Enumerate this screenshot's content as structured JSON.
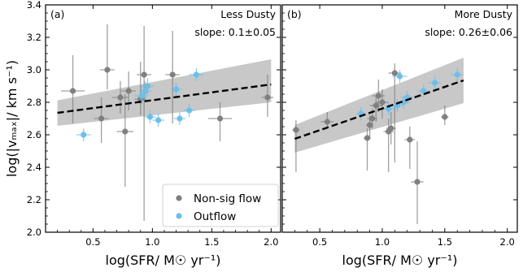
{
  "chart_data": [
    {
      "type": "scatter",
      "panel_label": "(a)",
      "annotation": "Less Dusty",
      "slope_text": "slope: 0.1±0.05",
      "xlabel": "log(SFR/ M☉ yr⁻¹)",
      "ylabel": "log(|vₘₐₓ|/ km s⁻¹)",
      "xlim": [
        0.1,
        2.08
      ],
      "ylim": [
        2.0,
        3.4
      ],
      "xticks": [
        "0.5",
        "1.0",
        "1.5",
        "2.0"
      ],
      "yticks": [
        "2.0",
        "2.2",
        "2.4",
        "2.6",
        "2.8",
        "3.0",
        "3.2",
        "3.4"
      ],
      "fit": {
        "x": [
          0.2,
          2.0
        ],
        "y": [
          2.735,
          2.91
        ],
        "band_lower": [
          2.655,
          2.8
        ],
        "band_upper": [
          2.812,
          3.065
        ]
      },
      "series": [
        {
          "name": "Non-sig flow",
          "color": "#808080",
          "points": [
            {
              "x": 0.33,
              "y": 2.87,
              "xerr": 0.1,
              "yerr_lo": 0.2,
              "yerr_hi": 0.22
            },
            {
              "x": 0.57,
              "y": 2.7,
              "xerr": 0.06,
              "yerr_lo": 0.15,
              "yerr_hi": 0.13
            },
            {
              "x": 0.62,
              "y": 3.0,
              "xerr": 0.06,
              "yerr_lo": 0.12,
              "yerr_hi": 0.28
            },
            {
              "x": 0.73,
              "y": 2.83,
              "xerr": 0.07,
              "yerr_lo": 0.1,
              "yerr_hi": 0.1
            },
            {
              "x": 0.77,
              "y": 2.62,
              "xerr": 0.07,
              "yerr_lo": 0.34,
              "yerr_hi": 0.23
            },
            {
              "x": 0.8,
              "y": 2.87,
              "xerr": 0.06,
              "yerr_lo": 0.12,
              "yerr_hi": 0.12
            },
            {
              "x": 0.9,
              "y": 2.82,
              "xerr": 0.05,
              "yerr_lo": 0.1,
              "yerr_hi": 0.23
            },
            {
              "x": 0.93,
              "y": 2.97,
              "xerr": 0.06,
              "yerr_lo": 0.9,
              "yerr_hi": 0.3
            },
            {
              "x": 1.17,
              "y": 2.97,
              "xerr": 0.06,
              "yerr_lo": 0.3,
              "yerr_hi": 0.27
            },
            {
              "x": 1.57,
              "y": 2.7,
              "xerr": 0.1,
              "yerr_lo": 0.14,
              "yerr_hi": 0.1
            },
            {
              "x": 1.97,
              "y": 2.83,
              "xerr": 0.05,
              "yerr_lo": 0.12,
              "yerr_hi": 0.14
            }
          ]
        },
        {
          "name": "Outflow",
          "color": "#6cbfea",
          "points": [
            {
              "x": 0.42,
              "y": 2.6,
              "xerr": 0.06,
              "yerr_lo": 0.04,
              "yerr_hi": 0.04
            },
            {
              "x": 0.91,
              "y": 2.84,
              "xerr": 0.06,
              "yerr_lo": 0.05,
              "yerr_hi": 0.06
            },
            {
              "x": 0.94,
              "y": 2.87,
              "xerr": 0.05,
              "yerr_lo": 0.05,
              "yerr_hi": 0.06
            },
            {
              "x": 0.96,
              "y": 2.9,
              "xerr": 0.05,
              "yerr_lo": 0.05,
              "yerr_hi": 0.05
            },
            {
              "x": 0.98,
              "y": 2.71,
              "xerr": 0.05,
              "yerr_lo": 0.04,
              "yerr_hi": 0.04
            },
            {
              "x": 1.05,
              "y": 2.69,
              "xerr": 0.05,
              "yerr_lo": 0.04,
              "yerr_hi": 0.04
            },
            {
              "x": 1.2,
              "y": 2.88,
              "xerr": 0.05,
              "yerr_lo": 0.04,
              "yerr_hi": 0.04
            },
            {
              "x": 1.23,
              "y": 2.7,
              "xerr": 0.05,
              "yerr_lo": 0.04,
              "yerr_hi": 0.04
            },
            {
              "x": 1.31,
              "y": 2.75,
              "xerr": 0.05,
              "yerr_lo": 0.04,
              "yerr_hi": 0.04
            },
            {
              "x": 1.37,
              "y": 2.97,
              "xerr": 0.06,
              "yerr_lo": 0.04,
              "yerr_hi": 0.04
            }
          ]
        }
      ],
      "legend": {
        "placement": "lower-right",
        "entries": [
          {
            "label": "Non-sig flow",
            "color": "#808080"
          },
          {
            "label": "Outflow",
            "color": "#6cbfea"
          }
        ]
      }
    },
    {
      "type": "scatter",
      "panel_label": "(b)",
      "annotation": "More Dusty",
      "slope_text": "slope: 0.26±0.06",
      "xlabel": "log(SFR/ M☉ yr⁻¹)",
      "xlim": [
        0.2,
        2.08
      ],
      "ylim": [
        2.0,
        3.4
      ],
      "xticks": [
        "0.5",
        "1.0",
        "1.5",
        "2.0"
      ],
      "fit": {
        "x": [
          0.3,
          1.65
        ],
        "y": [
          2.575,
          2.935
        ],
        "band_lower": [
          2.49,
          2.795
        ],
        "band_upper": [
          2.66,
          3.075
        ]
      },
      "series": [
        {
          "name": "Non-sig flow",
          "color": "#808080",
          "points": [
            {
              "x": 0.31,
              "y": 2.63,
              "xerr": 0.03,
              "yerr_lo": 0.26,
              "yerr_hi": 0.06
            },
            {
              "x": 0.56,
              "y": 2.68,
              "xerr": 0.05,
              "yerr_lo": 0.04,
              "yerr_hi": 0.06
            },
            {
              "x": 0.88,
              "y": 2.58,
              "xerr": 0.03,
              "yerr_lo": 0.2,
              "yerr_hi": 0.06
            },
            {
              "x": 0.9,
              "y": 2.66,
              "xerr": 0.03,
              "yerr_lo": 0.08,
              "yerr_hi": 0.06
            },
            {
              "x": 0.92,
              "y": 2.7,
              "xerr": 0.04,
              "yerr_lo": 0.06,
              "yerr_hi": 0.06
            },
            {
              "x": 0.95,
              "y": 2.78,
              "xerr": 0.05,
              "yerr_lo": 0.1,
              "yerr_hi": 0.06
            },
            {
              "x": 0.97,
              "y": 2.84,
              "xerr": 0.05,
              "yerr_lo": 0.1,
              "yerr_hi": 0.1
            },
            {
              "x": 1.0,
              "y": 2.8,
              "xerr": 0.05,
              "yerr_lo": 0.1,
              "yerr_hi": 0.08
            },
            {
              "x": 1.05,
              "y": 2.62,
              "xerr": 0.04,
              "yerr_lo": 0.25,
              "yerr_hi": 0.08
            },
            {
              "x": 1.07,
              "y": 2.64,
              "xerr": 0.04,
              "yerr_lo": 0.1,
              "yerr_hi": 0.1
            },
            {
              "x": 1.1,
              "y": 2.98,
              "xerr": 0.05,
              "yerr_lo": 0.55,
              "yerr_hi": 0.06
            },
            {
              "x": 1.22,
              "y": 2.57,
              "xerr": 0.04,
              "yerr_lo": 0.18,
              "yerr_hi": 0.08
            },
            {
              "x": 1.28,
              "y": 2.31,
              "xerr": 0.05,
              "yerr_lo": 0.26,
              "yerr_hi": 0.25
            },
            {
              "x": 1.5,
              "y": 2.71,
              "xerr": 0.03,
              "yerr_lo": 0.05,
              "yerr_hi": 0.07
            }
          ]
        },
        {
          "name": "Outflow",
          "color": "#6cbfea",
          "points": [
            {
              "x": 0.83,
              "y": 2.73,
              "xerr": 0.04,
              "yerr_lo": 0.04,
              "yerr_hi": 0.04
            },
            {
              "x": 1.05,
              "y": 2.76,
              "xerr": 0.05,
              "yerr_lo": 0.04,
              "yerr_hi": 0.04
            },
            {
              "x": 1.12,
              "y": 2.78,
              "xerr": 0.04,
              "yerr_lo": 0.04,
              "yerr_hi": 0.04
            },
            {
              "x": 1.14,
              "y": 2.96,
              "xerr": 0.06,
              "yerr_lo": 0.04,
              "yerr_hi": 0.04
            },
            {
              "x": 1.17,
              "y": 2.8,
              "xerr": 0.05,
              "yerr_lo": 0.04,
              "yerr_hi": 0.04
            },
            {
              "x": 1.2,
              "y": 2.83,
              "xerr": 0.05,
              "yerr_lo": 0.04,
              "yerr_hi": 0.04
            },
            {
              "x": 1.33,
              "y": 2.87,
              "xerr": 0.05,
              "yerr_lo": 0.04,
              "yerr_hi": 0.04
            },
            {
              "x": 1.42,
              "y": 2.92,
              "xerr": 0.05,
              "yerr_lo": 0.04,
              "yerr_hi": 0.04
            },
            {
              "x": 1.6,
              "y": 2.97,
              "xerr": 0.05,
              "yerr_lo": 0.04,
              "yerr_hi": 0.04
            }
          ]
        }
      ]
    }
  ]
}
